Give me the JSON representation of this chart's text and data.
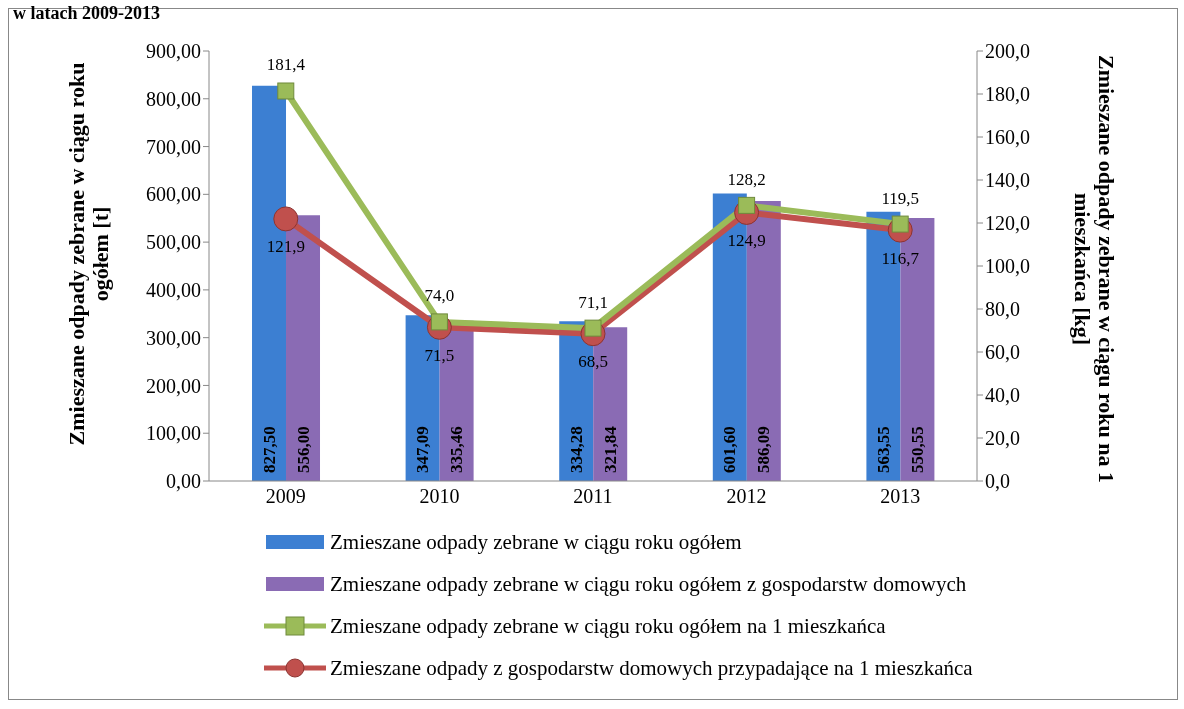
{
  "chart_data": {
    "type": "bar",
    "title": "w latach 2009-2013",
    "ylabel": "Zmieszane odpady zebrane w ciągu roku ogółem [t]",
    "y2label": "Zmieszane odpady zebrane w ciągu roku na 1 mieszkańca [kg]",
    "categories": [
      "2009",
      "2010",
      "2011",
      "2012",
      "2013"
    ],
    "series": [
      {
        "name": "Zmieszane odpady zebrane w ciągu roku ogółem",
        "color": "#3c7fd2",
        "values": [
          827.5,
          347.09,
          334.28,
          601.6,
          563.55
        ],
        "value_labels": [
          "827,50",
          "347,09",
          "334,28",
          "601,60",
          "563,55"
        ]
      },
      {
        "name": "Zmieszane odpady zebrane w ciągu roku ogółem z gospodarstw domowych",
        "color": "#8a6bb4",
        "values": [
          556.0,
          335.46,
          321.84,
          586.09,
          550.55
        ],
        "value_labels": [
          "556,00",
          "335,46",
          "321,84",
          "586,09",
          "550,55"
        ]
      },
      {
        "name": "Zmieszane odpady zebrane w ciągu roku ogółem na 1 mieszkańca",
        "type": "line",
        "axis": "y2",
        "marker": "square",
        "color": "#9bbb59",
        "values": [
          181.4,
          74.0,
          71.1,
          128.2,
          119.5
        ],
        "value_labels": [
          "181,4",
          "74,0",
          "71,1",
          "128,2",
          "119,5"
        ]
      },
      {
        "name": "Zmieszane odpady z gospodarstw domowych przypadające na 1 mieszkańca",
        "type": "line",
        "axis": "y2",
        "marker": "circle",
        "color": "#c0504d",
        "values": [
          121.9,
          71.5,
          68.5,
          124.9,
          116.7
        ],
        "value_labels": [
          "121,9",
          "71,5",
          "68,5",
          "124,9",
          "116,7"
        ]
      }
    ],
    "ylim": [
      0,
      900
    ],
    "yticks": [
      {
        "value": 0,
        "label": "0,00"
      },
      {
        "value": 100,
        "label": "100,00"
      },
      {
        "value": 200,
        "label": "200,00"
      },
      {
        "value": 300,
        "label": "300,00"
      },
      {
        "value": 400,
        "label": "400,00"
      },
      {
        "value": 500,
        "label": "500,00"
      },
      {
        "value": 600,
        "label": "600,00"
      },
      {
        "value": 700,
        "label": "700,00"
      },
      {
        "value": 800,
        "label": "800,00"
      },
      {
        "value": 900,
        "label": "900,00"
      }
    ],
    "y2lim": [
      0,
      200
    ],
    "y2ticks": [
      {
        "value": 0,
        "label": "0,0"
      },
      {
        "value": 20,
        "label": "20,0"
      },
      {
        "value": 40,
        "label": "40,0"
      },
      {
        "value": 60,
        "label": "60,0"
      },
      {
        "value": 80,
        "label": "80,0"
      },
      {
        "value": 100,
        "label": "100,0"
      },
      {
        "value": 120,
        "label": "120,0"
      },
      {
        "value": 140,
        "label": "140,0"
      },
      {
        "value": 160,
        "label": "160,0"
      },
      {
        "value": 180,
        "label": "180,0"
      },
      {
        "value": 200,
        "label": "200,0"
      }
    ],
    "legend": "bottom"
  }
}
